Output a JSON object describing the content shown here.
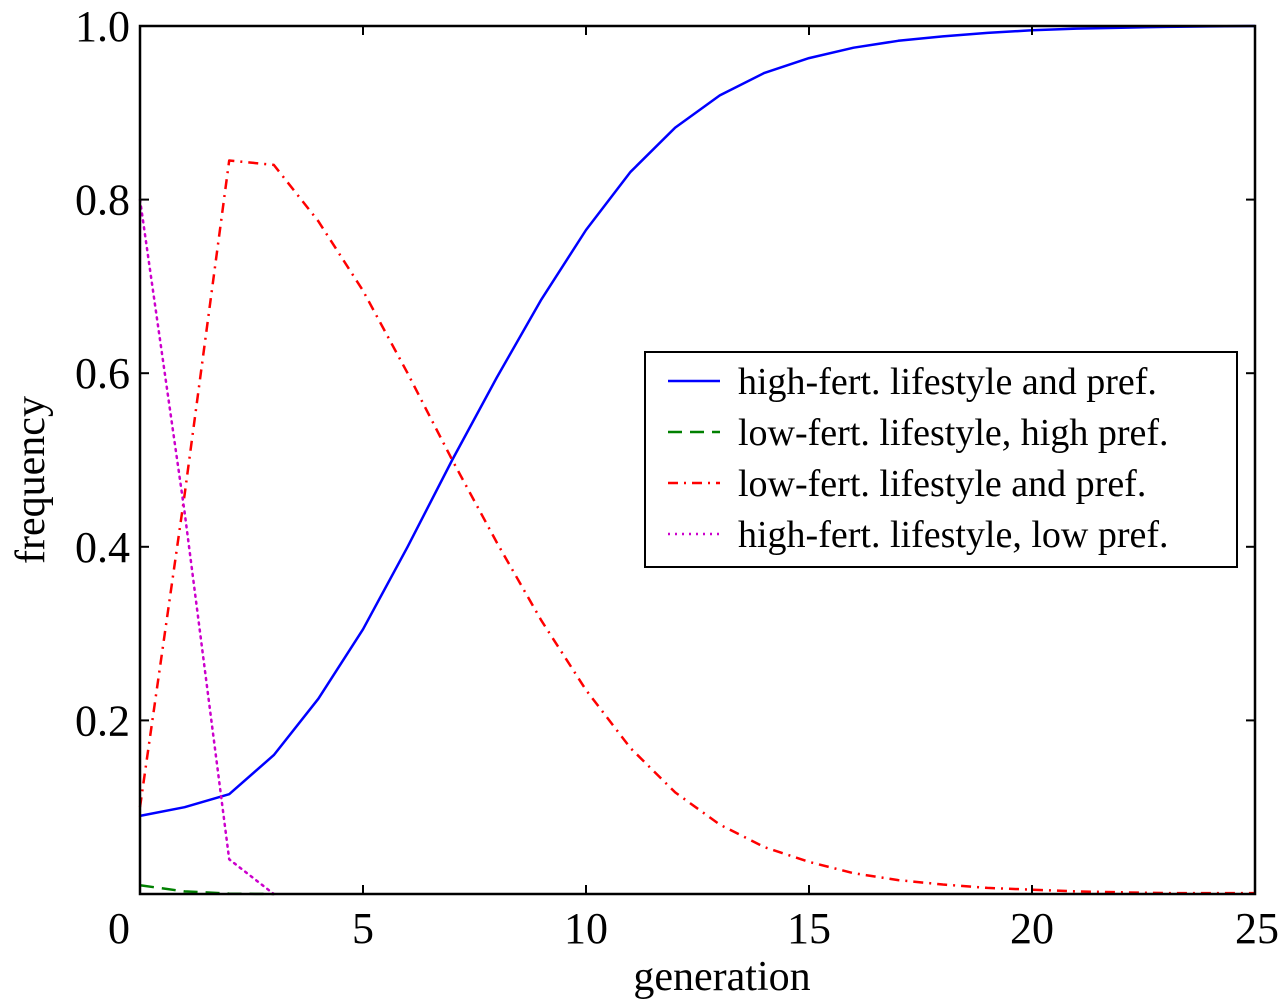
{
  "chart_data": {
    "type": "line",
    "title": "",
    "xlabel": "generation",
    "ylabel": "frequency",
    "xlim": [
      0,
      25
    ],
    "ylim": [
      0,
      1.0
    ],
    "x_ticks": [
      0,
      5,
      10,
      15,
      20,
      25
    ],
    "x_tick_labels": [
      "0",
      "5",
      "10",
      "15",
      "20",
      "25"
    ],
    "y_ticks": [
      0.2,
      0.4,
      0.6,
      0.8,
      1.0
    ],
    "y_tick_labels": [
      "0.2",
      "0.4",
      "0.6",
      "0.8",
      "1.0"
    ],
    "grid": false,
    "legend_position": "center-right",
    "series": [
      {
        "name": "high-fert. lifestyle and pref.",
        "color": "#0000ff",
        "style": "solid",
        "x": [
          0,
          1,
          2,
          3,
          4,
          5,
          6,
          7,
          8,
          9,
          10,
          11,
          12,
          13,
          14,
          15,
          16,
          17,
          18,
          19,
          20,
          21,
          22,
          23,
          24,
          25
        ],
        "y": [
          0.09,
          0.1,
          0.115,
          0.16,
          0.225,
          0.305,
          0.4,
          0.5,
          0.595,
          0.685,
          0.765,
          0.832,
          0.883,
          0.92,
          0.946,
          0.963,
          0.975,
          0.983,
          0.988,
          0.992,
          0.995,
          0.997,
          0.998,
          0.999,
          0.9995,
          1.0
        ]
      },
      {
        "name": "low-fert. lifestyle, high pref.",
        "color": "#008000",
        "style": "dashed",
        "x": [
          0,
          1,
          2,
          3
        ],
        "y": [
          0.01,
          0.003,
          0.0005,
          0.0
        ]
      },
      {
        "name": "low-fert. lifestyle and pref.",
        "color": "#ff0000",
        "style": "dashdot",
        "x": [
          0,
          1,
          2,
          3,
          4,
          5,
          6,
          7,
          8,
          9,
          10,
          11,
          12,
          13,
          14,
          15,
          16,
          17,
          18,
          19,
          20,
          21,
          22,
          23,
          24,
          25
        ],
        "y": [
          0.1,
          0.46,
          0.845,
          0.84,
          0.775,
          0.695,
          0.6,
          0.5,
          0.405,
          0.315,
          0.235,
          0.168,
          0.117,
          0.08,
          0.054,
          0.037,
          0.024,
          0.016,
          0.011,
          0.007,
          0.005,
          0.003,
          0.002,
          0.001,
          0.001,
          0.001
        ]
      },
      {
        "name": "high-fert. lifestyle, low pref.",
        "color": "#cc00cc",
        "style": "dotted",
        "x": [
          0,
          1,
          2,
          3
        ],
        "y": [
          0.8,
          0.44,
          0.04,
          0.0
        ]
      }
    ]
  }
}
